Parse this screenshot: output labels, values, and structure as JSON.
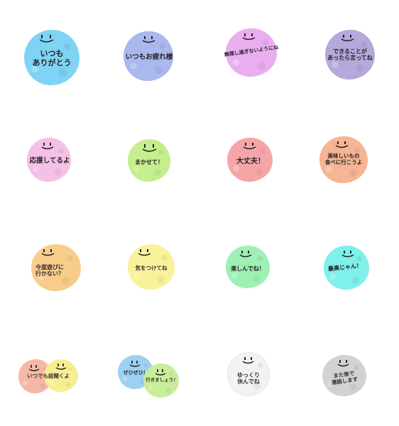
{
  "stickers": [
    {
      "text": "いつも\nありがとう",
      "color": "#7fd3f5"
    },
    {
      "text": "いつもお疲れ様",
      "color": "#a9b8ee"
    },
    {
      "text": "無理し過ぎないようにね",
      "color": "#eaaef0"
    },
    {
      "text": "できることが\nあったら言ってね",
      "color": "#b6a8da"
    },
    {
      "text": "応援してるよ",
      "color": "#f5bfe6"
    },
    {
      "text": "まかせて！",
      "color": "#c6ee8e"
    },
    {
      "text": "大丈夫！",
      "color": "#f5a5a8"
    },
    {
      "text": "美味しいもの\n食べに行こうよ",
      "color": "#f6b594"
    },
    {
      "text": "今度遊びに\n行かない？",
      "color": "#f8cc8a"
    },
    {
      "text": "気をつけてね",
      "color": "#f8f29a"
    },
    {
      "text": "楽しんでね！",
      "color": "#9ef0b5"
    },
    {
      "text": "最高じゃん！",
      "color": "#7ff0ea"
    },
    {
      "text": "いつでも話聞くよ",
      "color": "#f6b8a6",
      "color2": "#f8ee92"
    },
    {
      "text": "ぜひぜひ！",
      "text2": "行きましょう！",
      "color": "#9ed0f2",
      "color2": "#c9ee9a"
    },
    {
      "text": "ゆっくり\n休んでね",
      "color": "#f2f2f2"
    },
    {
      "text": "また後で\n連絡します",
      "color": "#d2d2d2"
    }
  ]
}
